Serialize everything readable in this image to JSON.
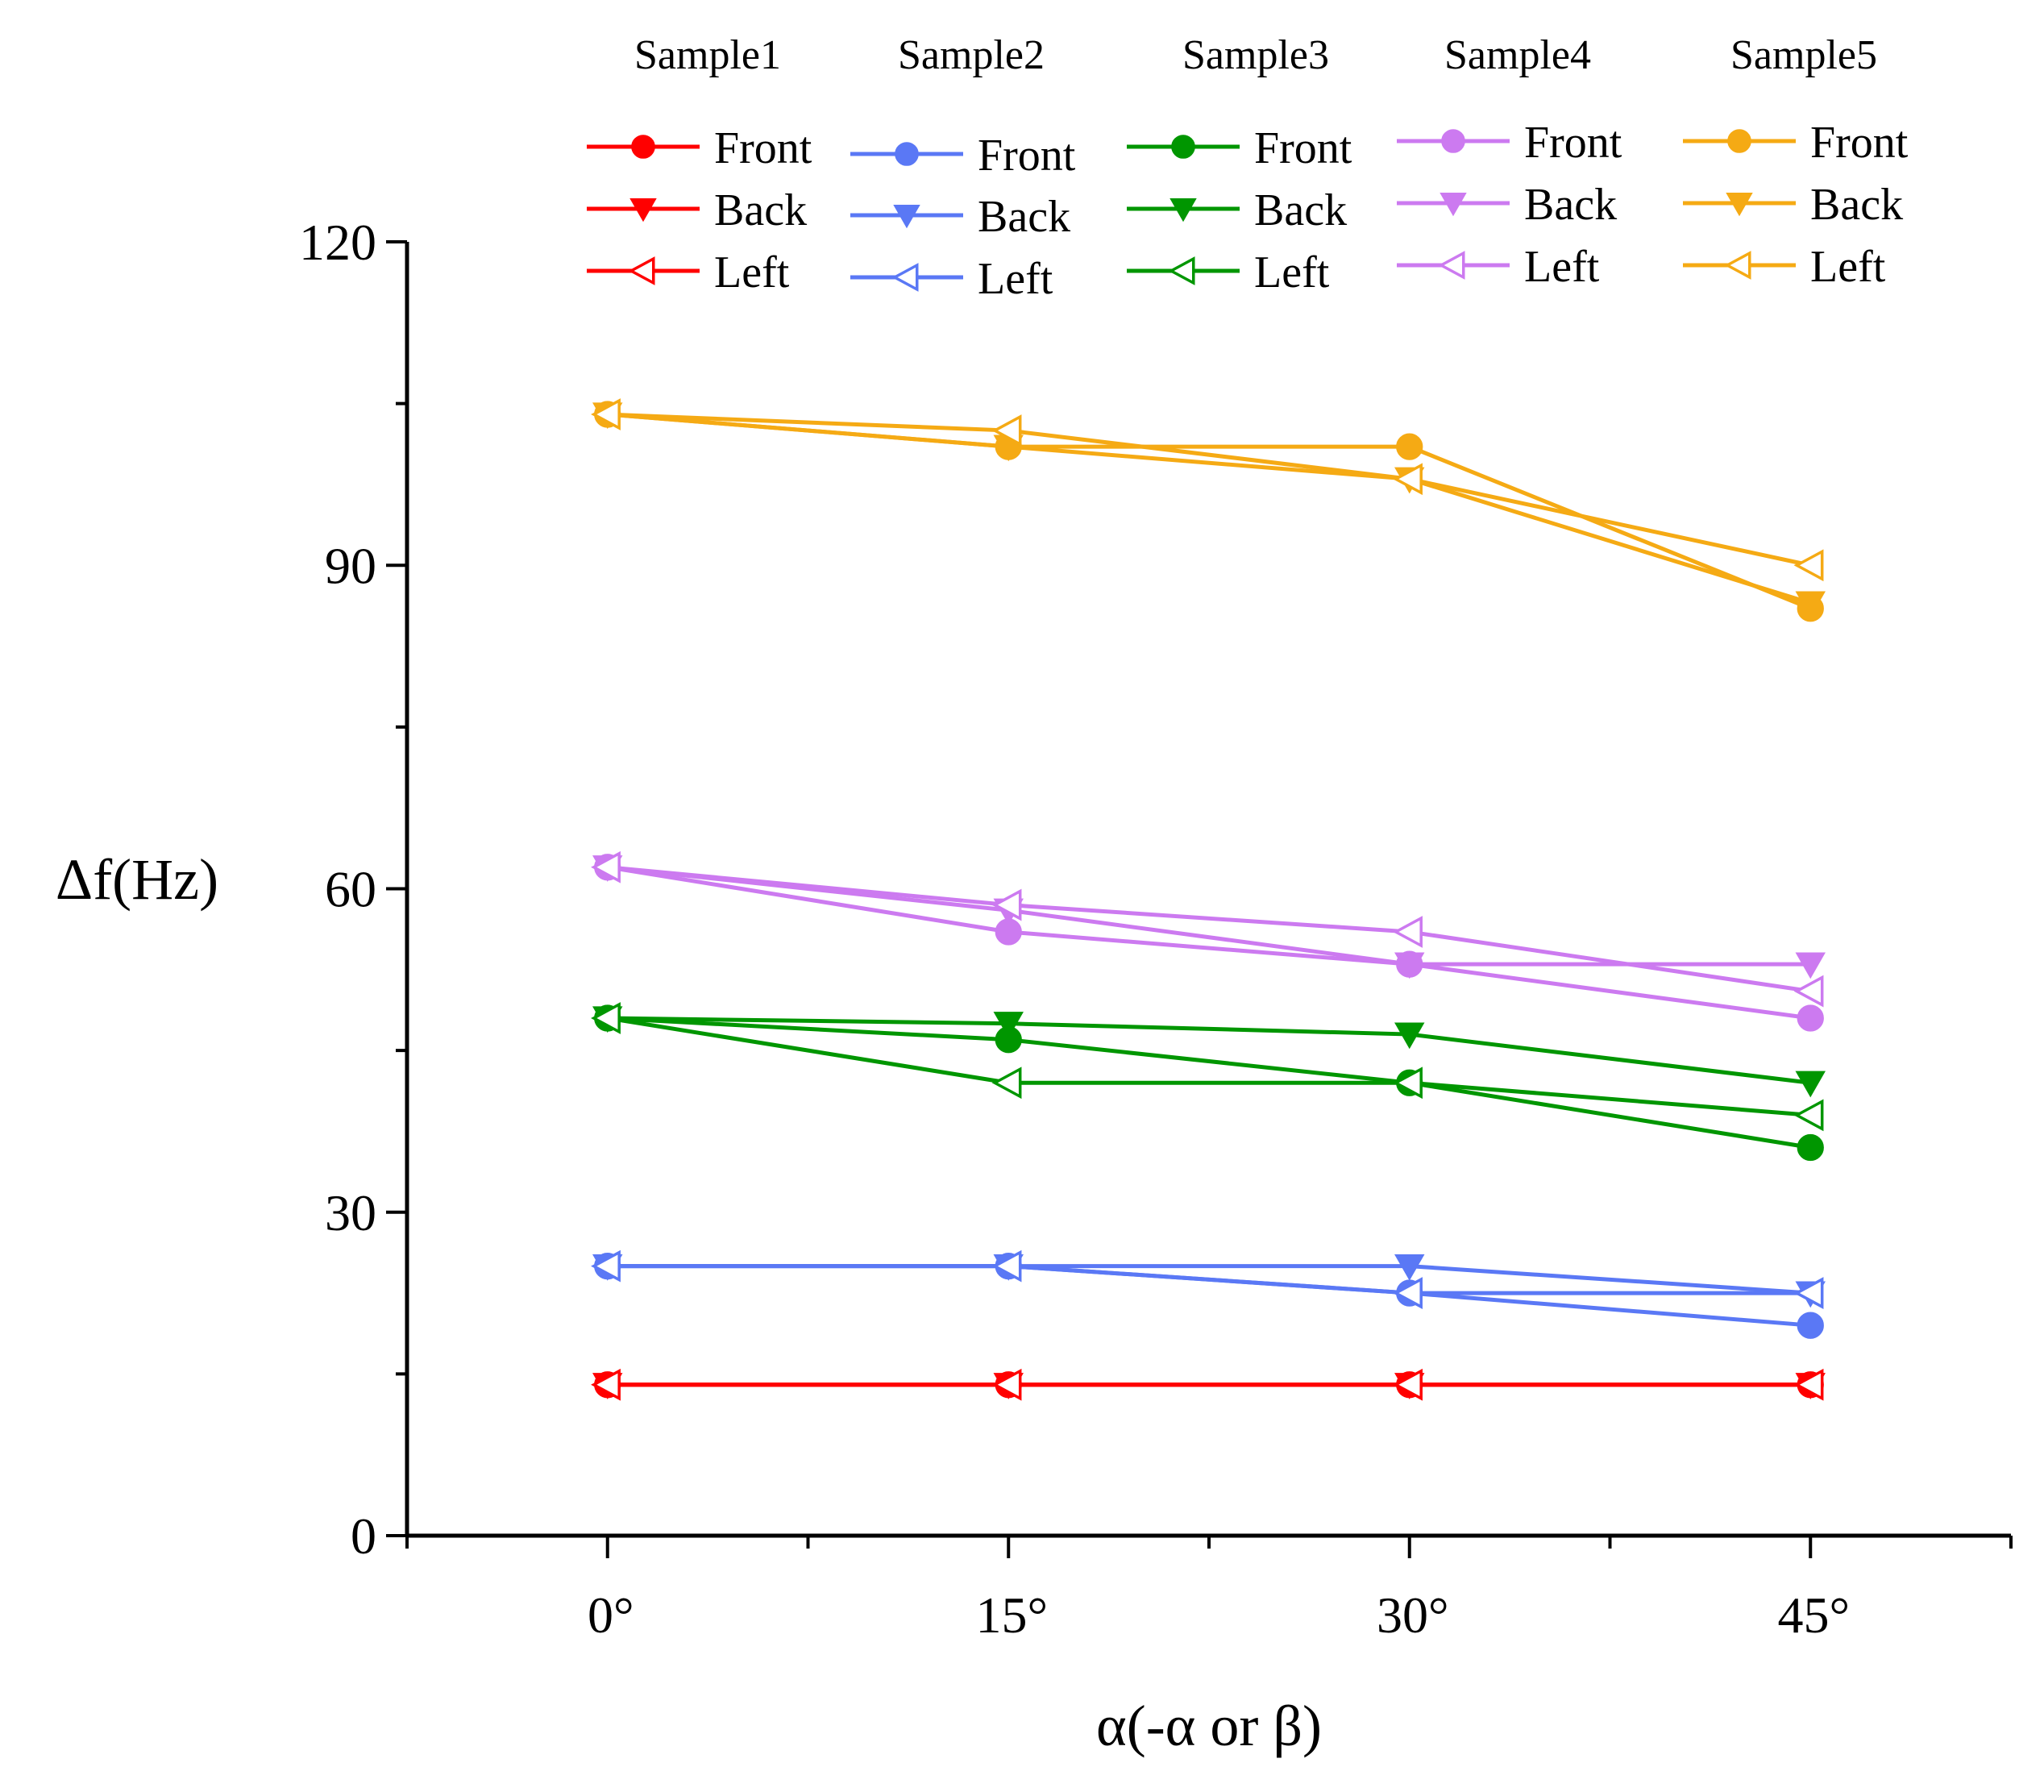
{
  "chart_data": {
    "type": "line",
    "title": "",
    "xlabel": "α(-α or β)",
    "ylabel": "Δf(Hz)",
    "categories": [
      "0°",
      "15°",
      "30°",
      "45°"
    ],
    "x": [
      0,
      15,
      30,
      45
    ],
    "xlim": [
      -7.5,
      52.5
    ],
    "ylim": [
      0,
      120
    ],
    "yticks": [
      0,
      30,
      60,
      90,
      120
    ],
    "ytick_labels": [
      "0",
      "30",
      "60",
      "90",
      "120"
    ],
    "legend_position": "top",
    "groups": [
      {
        "title": "Sample1",
        "color": "#ff0000"
      },
      {
        "title": "Sample2",
        "color": "#5a78f5"
      },
      {
        "title": "Sample3",
        "color": "#009600"
      },
      {
        "title": "Sample4",
        "color": "#cc7af0"
      },
      {
        "title": "Sample5",
        "color": "#f5aa14"
      }
    ],
    "series": [
      {
        "name": "Front",
        "group": 0,
        "marker": "circle",
        "values": [
          14,
          14,
          14,
          14
        ]
      },
      {
        "name": "Back",
        "group": 0,
        "marker": "triangle-down",
        "values": [
          14,
          14,
          14,
          14
        ]
      },
      {
        "name": "Left",
        "group": 0,
        "marker": "triangle-left-open",
        "values": [
          14,
          14,
          14,
          14
        ]
      },
      {
        "name": "Front",
        "group": 1,
        "marker": "circle",
        "values": [
          25,
          25,
          22.5,
          19.5
        ]
      },
      {
        "name": "Back",
        "group": 1,
        "marker": "triangle-down",
        "values": [
          25,
          25,
          25,
          22.5
        ]
      },
      {
        "name": "Left",
        "group": 1,
        "marker": "triangle-left-open",
        "values": [
          25,
          25,
          22.5,
          22.5
        ]
      },
      {
        "name": "Front",
        "group": 2,
        "marker": "circle",
        "values": [
          48,
          46,
          42,
          36
        ]
      },
      {
        "name": "Back",
        "group": 2,
        "marker": "triangle-down",
        "values": [
          48,
          47.5,
          46.5,
          42
        ]
      },
      {
        "name": "Left",
        "group": 2,
        "marker": "triangle-left-open",
        "values": [
          48,
          42,
          42,
          39
        ]
      },
      {
        "name": "Front",
        "group": 3,
        "marker": "circle",
        "values": [
          62,
          56,
          53,
          48
        ]
      },
      {
        "name": "Back",
        "group": 3,
        "marker": "triangle-down",
        "values": [
          62,
          58,
          53,
          53
        ]
      },
      {
        "name": "Left",
        "group": 3,
        "marker": "triangle-left-open",
        "values": [
          62,
          58.5,
          56,
          50.5
        ]
      },
      {
        "name": "Front",
        "group": 4,
        "marker": "circle",
        "values": [
          104,
          101,
          101,
          86
        ]
      },
      {
        "name": "Back",
        "group": 4,
        "marker": "triangle-down",
        "values": [
          104,
          101,
          98,
          86.5
        ]
      },
      {
        "name": "Left",
        "group": 4,
        "marker": "triangle-left-open",
        "values": [
          104,
          102.5,
          98,
          90
        ]
      }
    ]
  }
}
